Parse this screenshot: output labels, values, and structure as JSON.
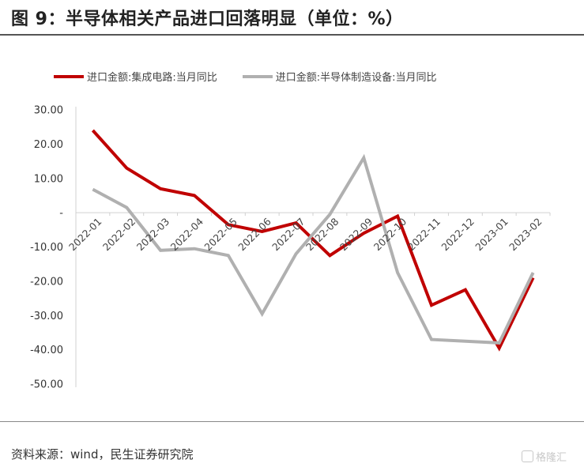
{
  "header": {
    "title": "图 9：半导体相关产品进口回落明显（单位：%）"
  },
  "footer": {
    "source": "资料来源：wind，民生证券研究院",
    "watermark": "格隆汇"
  },
  "chart_data": {
    "type": "line",
    "categories": [
      "2022-01",
      "2022-02",
      "2022-03",
      "2022-04",
      "2022-05",
      "2022-06",
      "2022-07",
      "2022-08",
      "2022-09",
      "2022-10",
      "2022-11",
      "2022-12",
      "2023-01",
      "2023-02"
    ],
    "series": [
      {
        "name": "进口金额:集成电路:当月同比",
        "color": "#c00000",
        "values": [
          24.0,
          13.0,
          7.0,
          5.0,
          -3.5,
          -5.5,
          -3.0,
          -12.5,
          -6.0,
          -1.0,
          -27.0,
          -22.5,
          -39.5,
          -19.0
        ]
      },
      {
        "name": "进口金额:半导体制造设备:当月同比",
        "color": "#b0b0b0",
        "values": [
          6.8,
          1.5,
          -11.0,
          -10.5,
          -12.5,
          -29.5,
          -12.0,
          -0.5,
          16.0,
          -17.5,
          -37.0,
          -37.5,
          -38.0,
          -17.5
        ]
      }
    ],
    "yticks": [
      "30.00",
      "20.00",
      "10.00",
      "-",
      "-10.00",
      "-20.00",
      "-30.00",
      "-40.00",
      "-50.00"
    ],
    "ylim": [
      -50,
      30
    ],
    "grid": false,
    "legend": "top"
  }
}
